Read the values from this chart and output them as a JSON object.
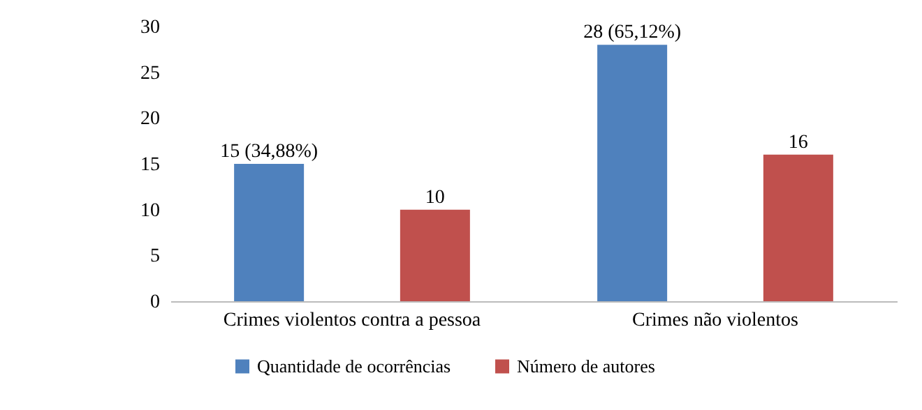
{
  "chart_data": {
    "type": "bar",
    "categories": [
      "Crimes violentos contra a pessoa",
      "Crimes não violentos"
    ],
    "series": [
      {
        "name": "Quantidade de ocorrências",
        "color": "#4f81bd",
        "values": [
          15,
          28
        ],
        "value_labels": [
          "15 (34,88%)",
          "28 (65,12%)"
        ]
      },
      {
        "name": "Número de autores",
        "color": "#c0504d",
        "values": [
          10,
          16
        ],
        "value_labels": [
          "10",
          "16"
        ]
      }
    ],
    "ylim": [
      0,
      30
    ],
    "yticks": [
      0,
      5,
      10,
      15,
      20,
      25,
      30
    ],
    "grid": false,
    "legend": "bottom"
  }
}
